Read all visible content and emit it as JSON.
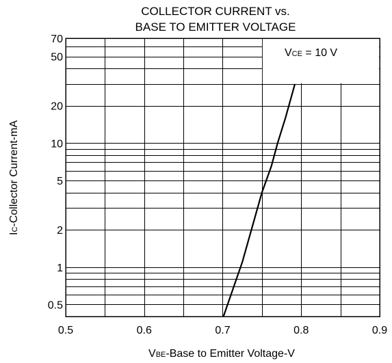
{
  "chart_data": {
    "type": "line",
    "title_lines": [
      "COLLECTOR CURRENT vs.",
      "BASE TO EMITTER VOLTAGE"
    ],
    "xlabel": {
      "symbol": "V",
      "subscript": "BE",
      "text": "-Base to Emitter Voltage-V"
    },
    "ylabel": {
      "symbol": "I",
      "subscript": "C",
      "text": "-Collector Current-mA"
    },
    "annotation": {
      "symbol": "V",
      "subscript": "CE",
      "text": " = 10 V"
    },
    "x_scale": "linear",
    "y_scale": "log",
    "xlim": [
      0.5,
      0.9
    ],
    "ylim": [
      0.4,
      70
    ],
    "x_ticks": [
      0.5,
      0.6,
      0.7,
      0.8,
      0.9
    ],
    "x_tick_labels": [
      "0.5",
      "0.6",
      "0.7",
      "0.8",
      "0.9"
    ],
    "x_minor_gridlines": [
      0.55,
      0.65,
      0.75,
      0.85
    ],
    "y_ticks": [
      0.5,
      1,
      2,
      5,
      10,
      20,
      50,
      70
    ],
    "y_tick_labels": [
      "0.5",
      "1",
      "2",
      "5",
      "10",
      "20",
      "50",
      "70"
    ],
    "y_gridlines": [
      0.5,
      0.6,
      0.7,
      0.8,
      0.9,
      1,
      2,
      3,
      4,
      5,
      6,
      7,
      8,
      9,
      10,
      20,
      30,
      40,
      50,
      60,
      70
    ],
    "grid": true,
    "legend": "none",
    "series": [
      {
        "x": [
          0.701,
          0.725,
          0.75,
          0.762,
          0.77,
          0.78,
          0.792
        ],
        "y": [
          0.4,
          1.1,
          4.0,
          6.5,
          10,
          16,
          30
        ]
      }
    ]
  }
}
